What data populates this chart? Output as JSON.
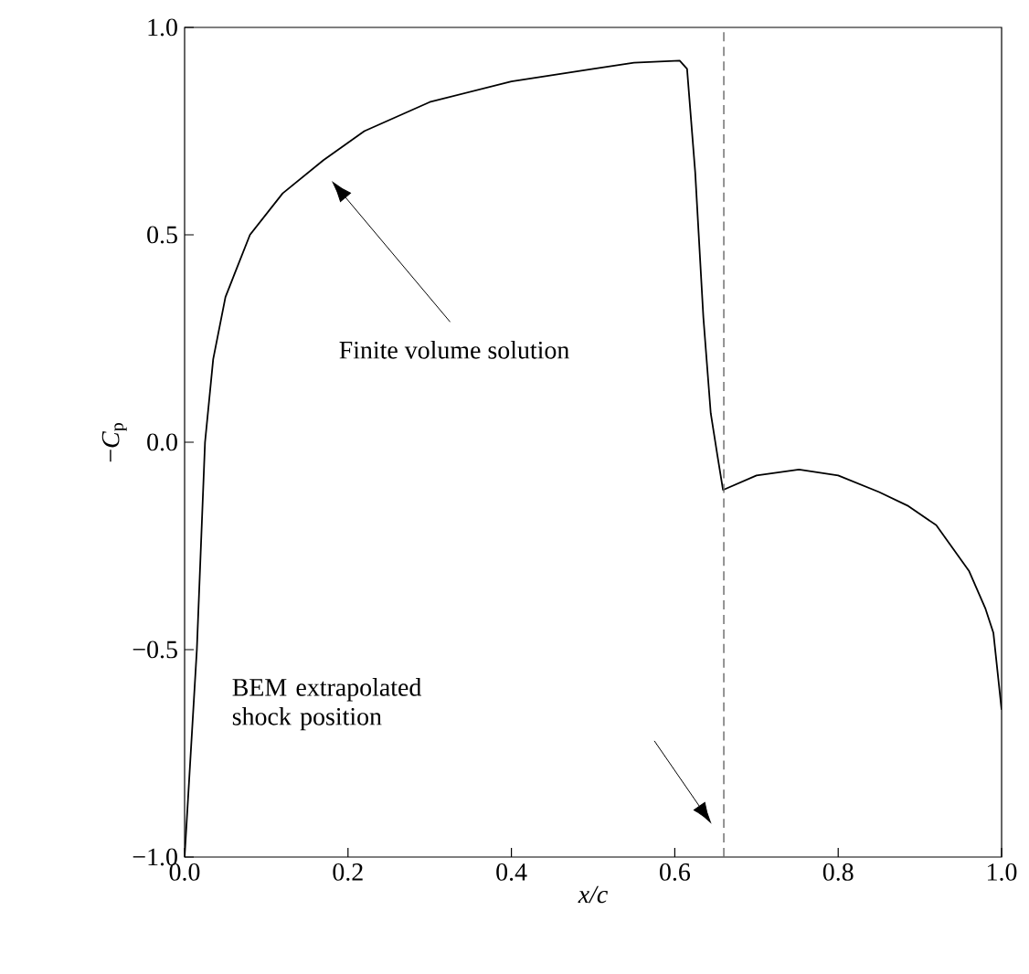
{
  "chart_data": {
    "type": "line",
    "xlabel": "x/c",
    "ylabel": "−*C*$_{p}$",
    "xlim": [
      0,
      1
    ],
    "ylim": [
      -1,
      1
    ],
    "xticks": [
      {
        "value": 0,
        "label": "0.0"
      },
      {
        "value": 0.2,
        "label": "0.2"
      },
      {
        "value": 0.4,
        "label": "0.4"
      },
      {
        "value": 0.6,
        "label": "0.6"
      },
      {
        "value": 0.8,
        "label": "0.8"
      },
      {
        "value": 1,
        "label": "1.0"
      }
    ],
    "yticks": [
      {
        "value": -1,
        "label": "−1.0"
      },
      {
        "value": -0.5,
        "label": "−0.5"
      },
      {
        "value": 0,
        "label": "0.0"
      },
      {
        "value": 0.5,
        "label": "0.5"
      },
      {
        "value": 1,
        "label": "1.0"
      }
    ],
    "grid": false,
    "marker": "none",
    "line_style": "solid",
    "series": [
      {
        "color": "#000000",
        "x": [
          0,
          0.015,
          0.025,
          0.035,
          0.05,
          0.08,
          0.12,
          0.17,
          0.22,
          0.3,
          0.4,
          0.5,
          0.55,
          0.606,
          0.615,
          0.625,
          0.635,
          0.644,
          0.652,
          0.659,
          0.7,
          0.752,
          0.8,
          0.85,
          0.886,
          0.92,
          0.96,
          0.98,
          0.99,
          1.0
        ],
        "values": [
          -1,
          -0.5,
          0,
          0.2,
          0.35,
          0.5,
          0.6,
          0.68,
          0.75,
          0.82,
          0.87,
          0.9,
          0.915,
          0.92,
          0.9,
          0.65,
          0.3,
          0.07,
          -0.03,
          -0.115,
          -0.08,
          -0.066,
          -0.08,
          -0.12,
          -0.154,
          -0.2,
          -0.31,
          -0.4,
          -0.46,
          -0.645
        ]
      }
    ],
    "ref_lines": [
      {
        "axis": "x",
        "value": 0.66,
        "color": "#666666",
        "line_style": "dashed"
      }
    ],
    "annotations": [
      "Finite volume solution",
      "BEM extrapolated shock position"
    ]
  }
}
